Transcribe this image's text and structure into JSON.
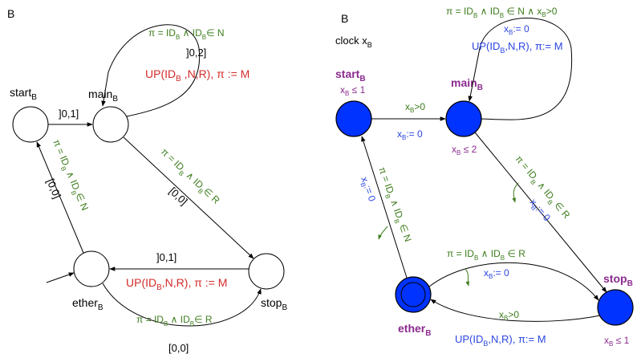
{
  "left": {
    "title": "B",
    "states": {
      "start": {
        "name": "start",
        "sub": "B"
      },
      "main": {
        "name": "main",
        "sub": "B"
      },
      "ether": {
        "name": "ether",
        "sub": "B"
      },
      "stop": {
        "name": "stop",
        "sub": "B"
      }
    },
    "edges": {
      "start_main": "]0,1]",
      "main_loop": {
        "guard": "π = ID_B ∧ ID_B∈ N",
        "interval": "]0,2]",
        "update": "UP(ID_B ,N,R), π := M"
      },
      "main_stop": {
        "guard": "π = ID_B ∧ ID_B∈ R",
        "interval": "[0,0]"
      },
      "stop_ether": {
        "interval": "]0,1]",
        "update": "UP(ID_B,N,R), π := M"
      },
      "ether_stop": {
        "guard": "π = ID_B ∧ ID_B∈ R",
        "interval": "[0,0]"
      },
      "ether_start": {
        "guard": "π = ID_B ∧ ID_B∈ N",
        "interval": "[0,0]"
      }
    }
  },
  "right": {
    "title": "B",
    "clock": "clock x_B",
    "states": {
      "start": {
        "name": "start",
        "sub": "B",
        "invariant": "x_B ≤ 1"
      },
      "main": {
        "name": "main",
        "sub": "B",
        "invariant": "x_B ≤ 2"
      },
      "ether": {
        "name": "ether",
        "sub": "B"
      },
      "stop": {
        "name": "stop",
        "sub": "B",
        "invariant": "x_B ≤ 1"
      }
    },
    "edges": {
      "main_loop": {
        "guard": "π = ID_B ∧ ID_B ∈ N ∧ x_B>0",
        "reset": "x_B:= 0",
        "update": "UP(ID_B,N,R), π:= M"
      },
      "start_main": {
        "guard": "x_B>0",
        "reset": "x_B:= 0"
      },
      "main_stop": {
        "guard": "π = ID_B ∧ ID_B ∈ R",
        "reset": "x_B:= 0"
      },
      "ether_start": {
        "guard": "π = ID_B ∧ ID_B ∈ N",
        "reset": "x_B:= 0"
      },
      "ether_stop": {
        "guard": "π = ID_B ∧ ID_B ∈ R",
        "reset": "x_B:= 0"
      },
      "stop_ether": {
        "guard": "x_B>0",
        "update": "UP(ID_B,N,R), π:= M"
      }
    }
  },
  "colors": {
    "state_fill": "#0033ff",
    "guard": "#3e7d1d",
    "update": "#d42a2a",
    "reset": "#2b46e0",
    "state_label": "#8a2b8e"
  }
}
